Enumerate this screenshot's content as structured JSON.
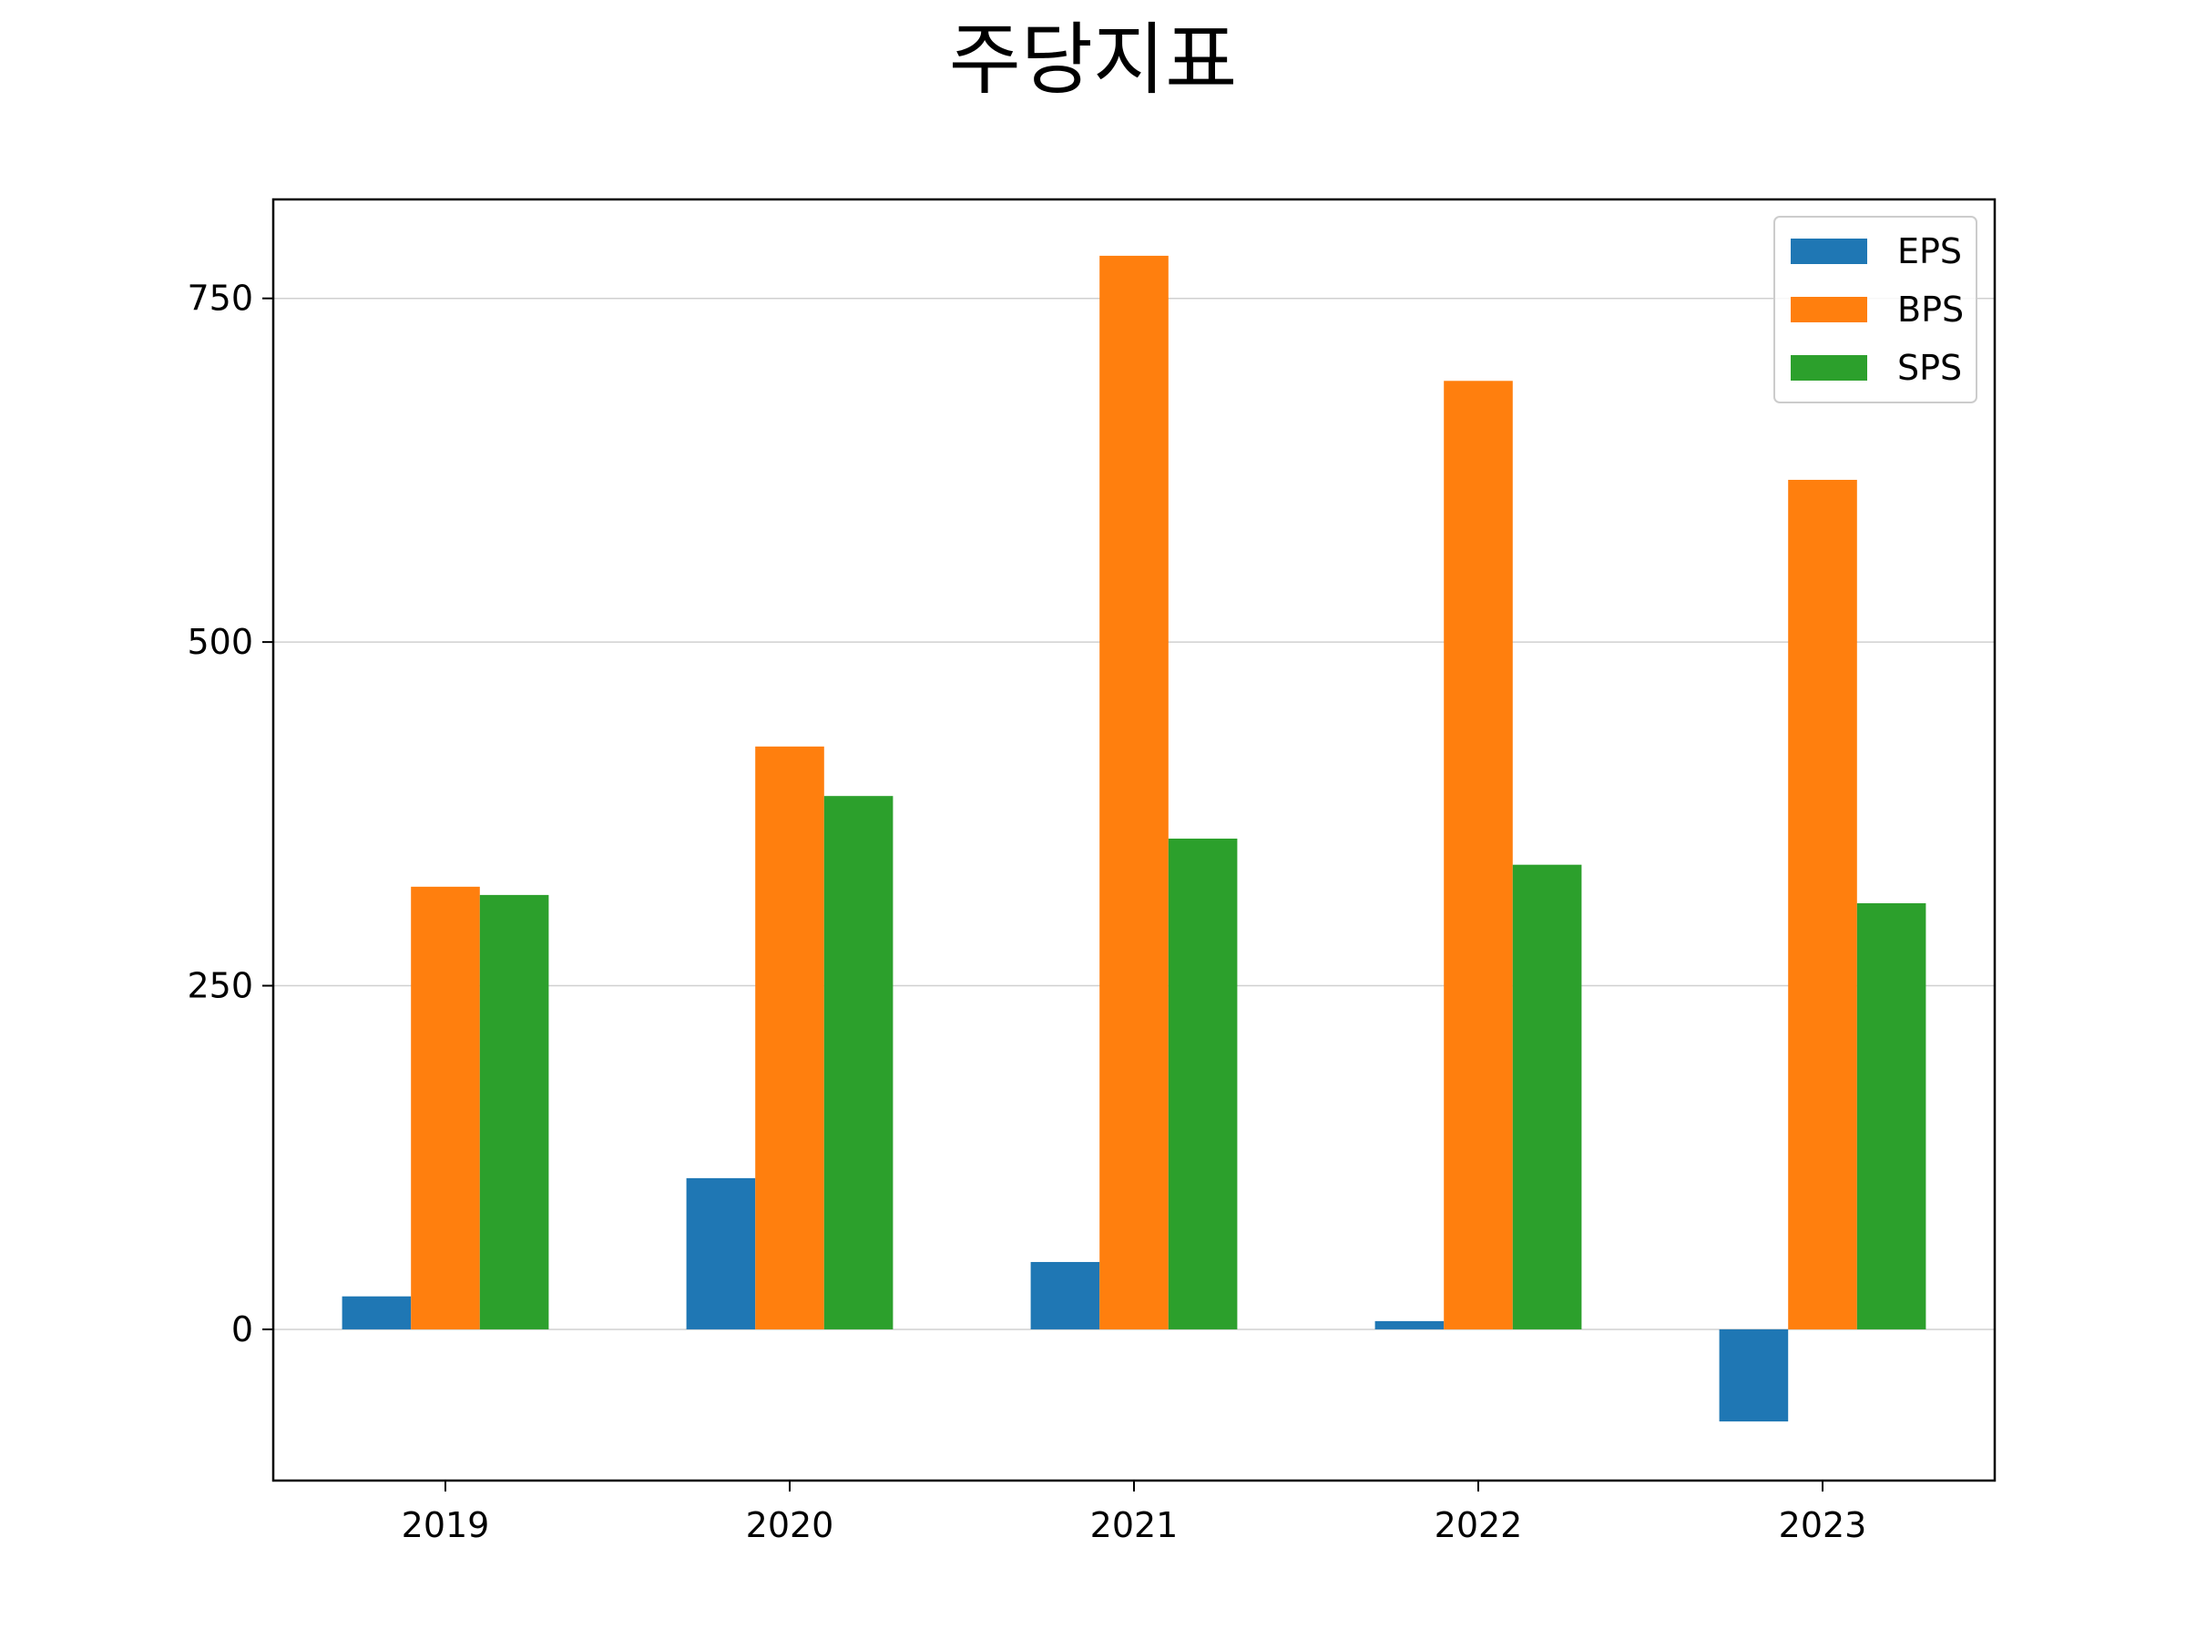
{
  "chart_data": {
    "type": "bar",
    "title": "주당지표",
    "xlabel": "",
    "ylabel": "",
    "categories": [
      "2019",
      "2020",
      "2021",
      "2022",
      "2023"
    ],
    "series": [
      {
        "name": "EPS",
        "color": "#1f77b4",
        "values": [
          24,
          110,
          49,
          6,
          -67
        ]
      },
      {
        "name": "BPS",
        "color": "#ff7f0e",
        "values": [
          322,
          424,
          781,
          690,
          618
        ]
      },
      {
        "name": "SPS",
        "color": "#2ca02c",
        "values": [
          316,
          388,
          357,
          338,
          310
        ]
      }
    ],
    "ylim": [
      -110,
      822
    ],
    "yticks": [
      0,
      250,
      500,
      750
    ],
    "ytick_labels": [
      "0",
      "250",
      "500",
      "750"
    ],
    "grid": "y",
    "legend": "top-right"
  }
}
